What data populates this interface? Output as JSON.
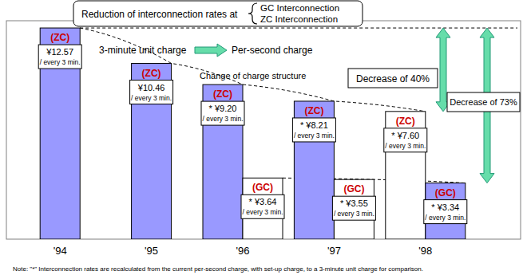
{
  "chart_data": {
    "type": "bar",
    "title": "Reduction of interconnection rates at",
    "title_items": [
      "GC Interconnection",
      "ZC Interconnection"
    ],
    "categories": [
      "'94",
      "'95",
      "'96",
      "'97",
      "'98"
    ],
    "series": [
      {
        "name": "(ZC)",
        "color": "#9999ff",
        "colors": [
          "#9999ff",
          "#9999ff",
          "#9999ff",
          "#9999ff",
          "#ffffff"
        ],
        "values": [
          12.57,
          10.46,
          9.2,
          8.21,
          7.6
        ],
        "value_labels": [
          "¥12.57",
          "¥10.46",
          "* ¥9.20",
          "* ¥8.21",
          "* ¥7.60"
        ]
      },
      {
        "name": "(GC)",
        "color": "#9999ff",
        "colors": [
          null,
          null,
          "#ffffff",
          "#ffffff",
          "#9999ff"
        ],
        "values": [
          null,
          null,
          3.64,
          3.55,
          3.34
        ],
        "value_labels": [
          null,
          null,
          "* ¥3.64",
          "* ¥3.55",
          "* ¥3.34"
        ]
      }
    ],
    "ylim": [
      0,
      13
    ],
    "data_labels": true,
    "tick_labels": "x",
    "grid": false,
    "annotations": {
      "charge_from": "3-minute unit charge",
      "charge_to": "Per-second charge",
      "structure": "Change of charge structure",
      "decrease_zc": "Decrease of 40%",
      "decrease_gc": "Decrease of 73%",
      "unit_note": "/ every 3 min.",
      "note": "Note: \"*\"  Interconnection rates are recalculated from the current per-second  charge, with set-up charge, to a 3-minute unit charge for comparison."
    }
  }
}
